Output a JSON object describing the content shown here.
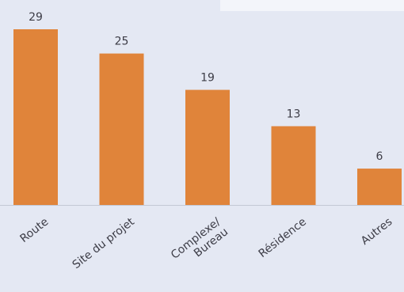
{
  "chart_data": {
    "type": "bar",
    "categories": [
      [
        "Route"
      ],
      [
        "Site du projet"
      ],
      [
        "Complexe/",
        "Bureau"
      ],
      [
        "Résidence"
      ],
      [
        "Autres"
      ]
    ],
    "values": [
      29,
      25,
      19,
      13,
      6
    ],
    "title": "",
    "xlabel": "",
    "ylabel": "",
    "ylim": [
      0,
      29
    ],
    "grid": false,
    "legend": "none",
    "data_labels": true,
    "bar_color": "#e0843a",
    "axis_color": "#c3c8d4",
    "label_color": "#3c3c46",
    "background_color": "#e4e8f3",
    "panel_color": "#f3f5fa"
  }
}
